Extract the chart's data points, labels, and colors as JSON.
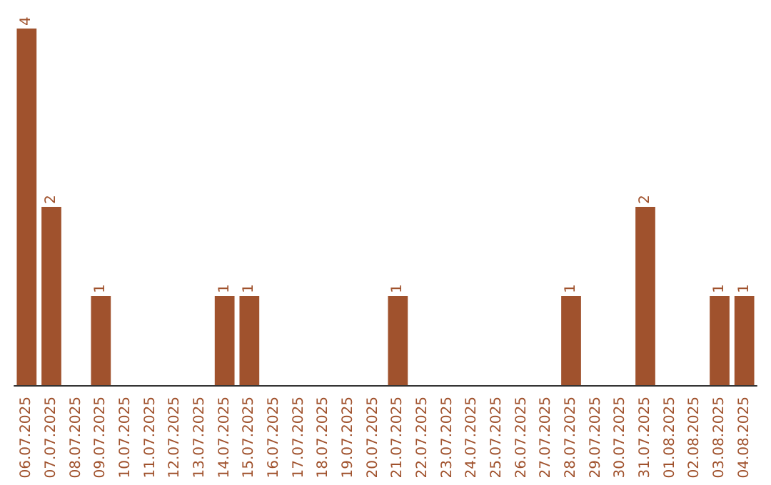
{
  "chart_data": {
    "type": "bar",
    "categories": [
      "06.07.2025",
      "07.07.2025",
      "08.07.2025",
      "09.07.2025",
      "10.07.2025",
      "11.07.2025",
      "12.07.2025",
      "13.07.2025",
      "14.07.2025",
      "15.07.2025",
      "16.07.2025",
      "17.07.2025",
      "18.07.2025",
      "19.07.2025",
      "20.07.2025",
      "21.07.2025",
      "22.07.2025",
      "23.07.2025",
      "24.07.2025",
      "25.07.2025",
      "26.07.2025",
      "27.07.2025",
      "28.07.2025",
      "29.07.2025",
      "30.07.2025",
      "31.07.2025",
      "01.08.2025",
      "02.08.2025",
      "03.08.2025",
      "04.08.2025"
    ],
    "values": [
      4,
      2,
      0,
      1,
      0,
      0,
      0,
      0,
      1,
      1,
      0,
      0,
      0,
      0,
      0,
      1,
      0,
      0,
      0,
      0,
      0,
      0,
      1,
      0,
      0,
      2,
      0,
      0,
      1,
      1
    ],
    "value_labels": [
      "4",
      "2",
      null,
      "1",
      null,
      null,
      null,
      null,
      "1",
      "1",
      null,
      null,
      null,
      null,
      null,
      "1",
      null,
      null,
      null,
      null,
      null,
      null,
      "1",
      null,
      null,
      "2",
      null,
      null,
      "1",
      "1"
    ],
    "color": "#a0522d",
    "tick_labels": "x"
  }
}
